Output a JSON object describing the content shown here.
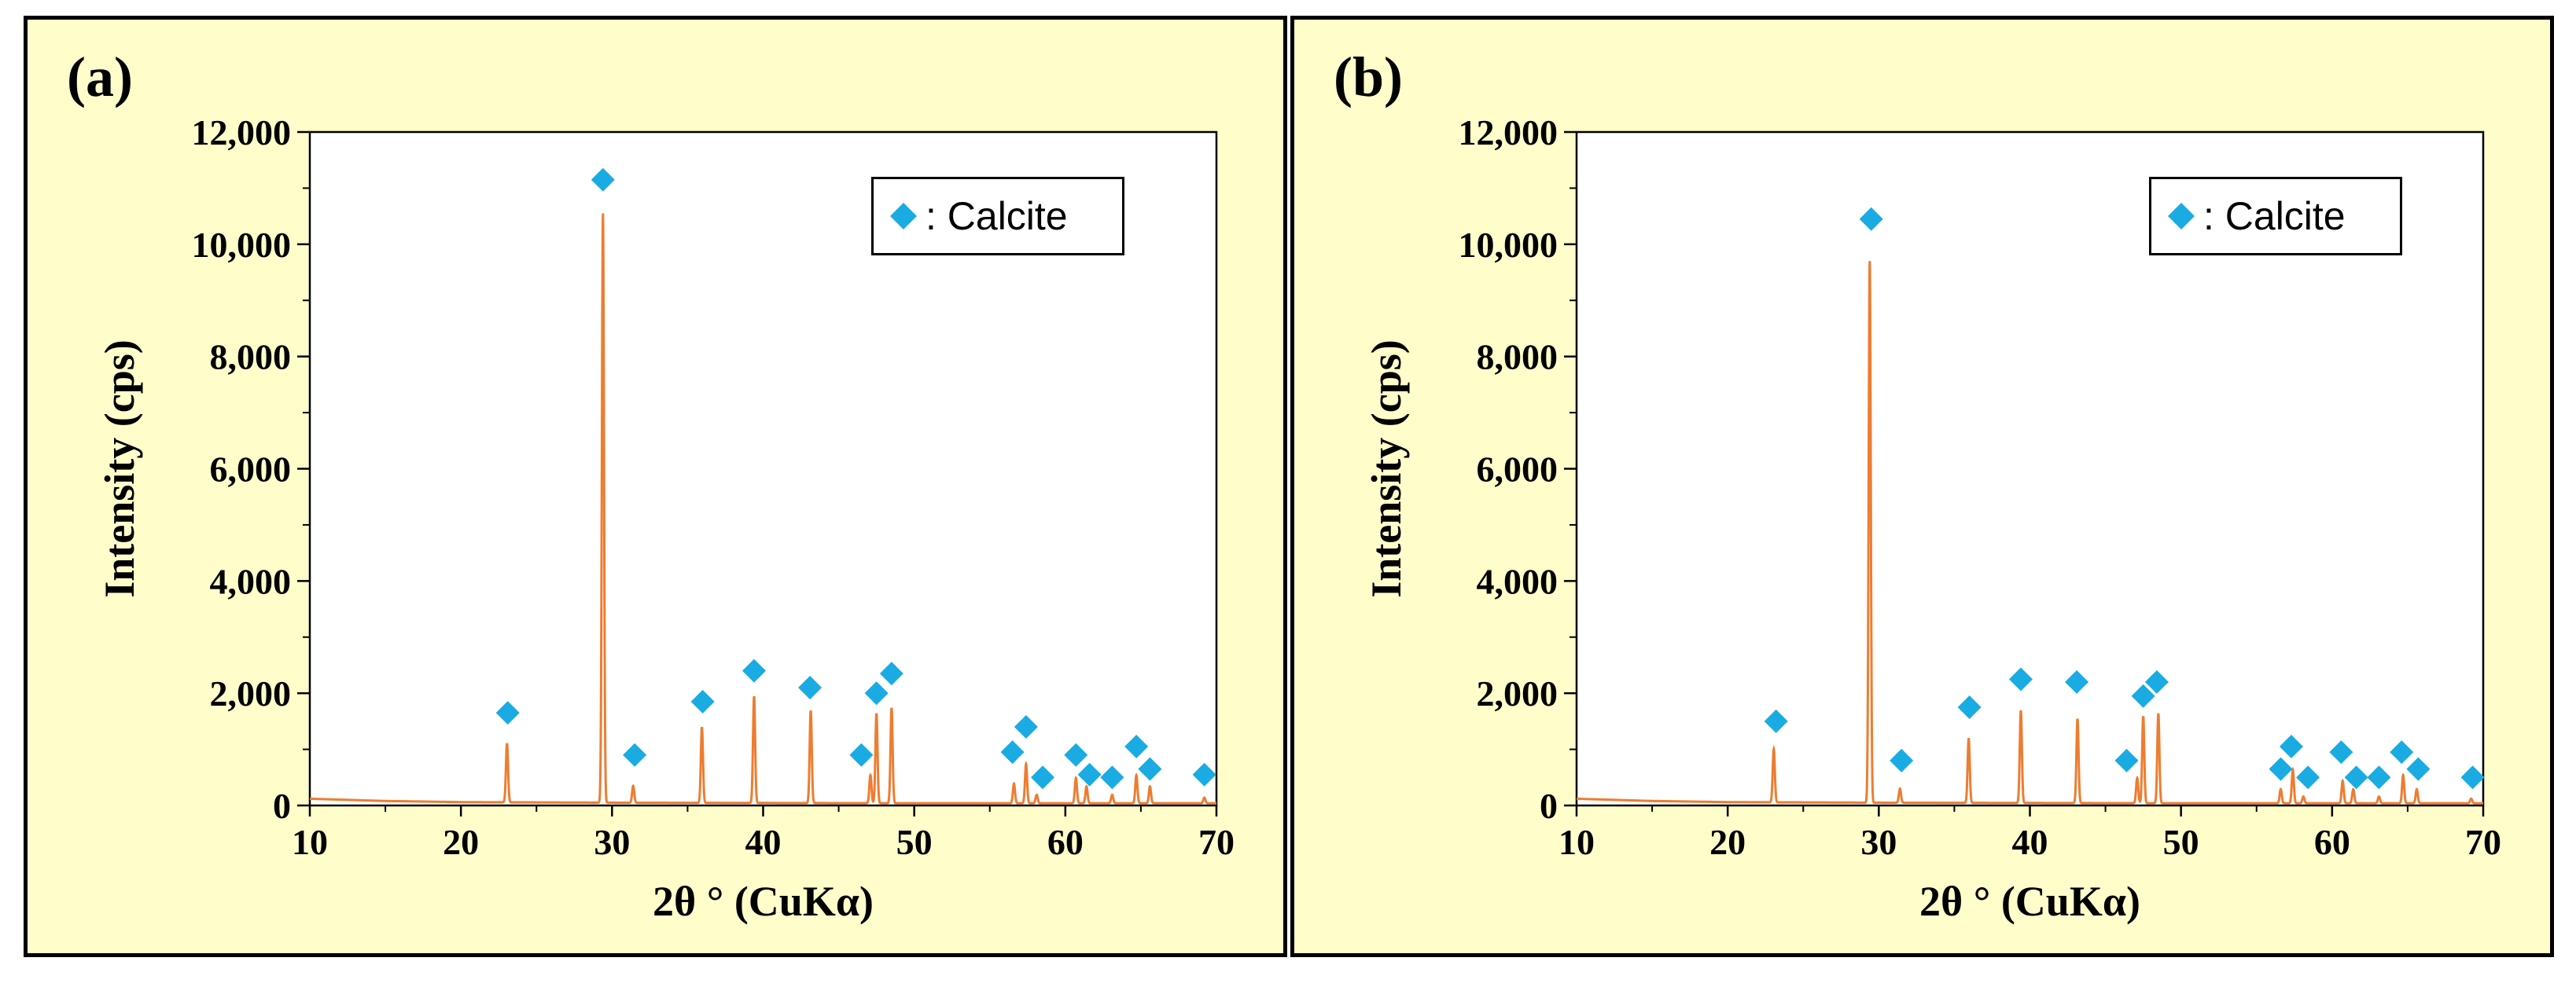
{
  "colors": {
    "panel_bg": "#fffecb",
    "line": "#ed7d31",
    "marker": "#1aabe3",
    "plot_bg": "#ffffff"
  },
  "chart_data": [
    {
      "panel_label": "(a)",
      "type": "line",
      "xlabel": "2θ ° (CuKα)",
      "ylabel": "Intensity (cps)",
      "xlim": [
        10,
        70
      ],
      "ylim": [
        0,
        12000
      ],
      "x_ticks": [
        "10",
        "20",
        "30",
        "40",
        "50",
        "60",
        "70"
      ],
      "y_ticks": [
        "0",
        "2,000",
        "4,000",
        "6,000",
        "8,000",
        "10,000",
        "12,000"
      ],
      "legend": {
        "symbol": "diamond",
        "label": ": Calcite"
      },
      "baseline": [
        [
          10,
          120
        ],
        [
          15,
          80
        ],
        [
          20,
          60
        ],
        [
          30,
          50
        ],
        [
          50,
          40
        ],
        [
          70,
          40
        ]
      ],
      "peaks": [
        {
          "x": 23.05,
          "y": 1050
        },
        {
          "x": 29.4,
          "y": 10500
        },
        {
          "x": 31.4,
          "y": 300
        },
        {
          "x": 35.95,
          "y": 1350
        },
        {
          "x": 39.4,
          "y": 1900
        },
        {
          "x": 43.15,
          "y": 1650
        },
        {
          "x": 47.1,
          "y": 500
        },
        {
          "x": 47.5,
          "y": 1600
        },
        {
          "x": 48.5,
          "y": 1700
        },
        {
          "x": 56.6,
          "y": 350
        },
        {
          "x": 57.4,
          "y": 700
        },
        {
          "x": 58.1,
          "y": 150
        },
        {
          "x": 60.7,
          "y": 450
        },
        {
          "x": 61.4,
          "y": 300
        },
        {
          "x": 63.1,
          "y": 150
        },
        {
          "x": 64.7,
          "y": 500
        },
        {
          "x": 65.6,
          "y": 300
        },
        {
          "x": 69.2,
          "y": 100
        }
      ],
      "markers": [
        {
          "x": 23.1,
          "y": 1650
        },
        {
          "x": 29.4,
          "y": 11150
        },
        {
          "x": 31.5,
          "y": 900
        },
        {
          "x": 36.0,
          "y": 1850
        },
        {
          "x": 39.4,
          "y": 2400
        },
        {
          "x": 43.1,
          "y": 2100
        },
        {
          "x": 46.5,
          "y": 900
        },
        {
          "x": 47.5,
          "y": 2000
        },
        {
          "x": 48.5,
          "y": 2350
        },
        {
          "x": 56.5,
          "y": 950
        },
        {
          "x": 57.4,
          "y": 1400
        },
        {
          "x": 58.5,
          "y": 500
        },
        {
          "x": 60.7,
          "y": 900
        },
        {
          "x": 61.6,
          "y": 550
        },
        {
          "x": 63.1,
          "y": 500
        },
        {
          "x": 64.7,
          "y": 1050
        },
        {
          "x": 65.6,
          "y": 650
        },
        {
          "x": 69.2,
          "y": 550
        }
      ]
    },
    {
      "panel_label": "(b)",
      "type": "line",
      "xlabel": "2θ ° (CuKα)",
      "ylabel": "Intensity (cps)",
      "xlim": [
        10,
        70
      ],
      "ylim": [
        0,
        12000
      ],
      "x_ticks": [
        "10",
        "20",
        "30",
        "40",
        "50",
        "60",
        "70"
      ],
      "y_ticks": [
        "0",
        "2,000",
        "4,000",
        "6,000",
        "8,000",
        "10,000",
        "12,000"
      ],
      "legend": {
        "symbol": "diamond",
        "label": ": Calcite"
      },
      "baseline": [
        [
          10,
          120
        ],
        [
          15,
          80
        ],
        [
          20,
          60
        ],
        [
          30,
          50
        ],
        [
          50,
          40
        ],
        [
          70,
          40
        ]
      ],
      "peaks": [
        {
          "x": 23.05,
          "y": 950
        },
        {
          "x": 29.4,
          "y": 9650
        },
        {
          "x": 31.4,
          "y": 250
        },
        {
          "x": 35.95,
          "y": 1150
        },
        {
          "x": 39.4,
          "y": 1650
        },
        {
          "x": 43.15,
          "y": 1500
        },
        {
          "x": 47.1,
          "y": 450
        },
        {
          "x": 47.5,
          "y": 1550
        },
        {
          "x": 48.5,
          "y": 1600
        },
        {
          "x": 56.6,
          "y": 250
        },
        {
          "x": 57.4,
          "y": 600
        },
        {
          "x": 58.1,
          "y": 120
        },
        {
          "x": 60.7,
          "y": 400
        },
        {
          "x": 61.4,
          "y": 250
        },
        {
          "x": 63.1,
          "y": 120
        },
        {
          "x": 64.7,
          "y": 500
        },
        {
          "x": 65.6,
          "y": 250
        },
        {
          "x": 69.2,
          "y": 80
        }
      ],
      "markers": [
        {
          "x": 23.2,
          "y": 1500
        },
        {
          "x": 29.5,
          "y": 10450
        },
        {
          "x": 31.5,
          "y": 800
        },
        {
          "x": 36.0,
          "y": 1750
        },
        {
          "x": 39.4,
          "y": 2250
        },
        {
          "x": 43.1,
          "y": 2200
        },
        {
          "x": 46.4,
          "y": 800
        },
        {
          "x": 47.5,
          "y": 1950
        },
        {
          "x": 48.4,
          "y": 2200
        },
        {
          "x": 56.6,
          "y": 650
        },
        {
          "x": 57.3,
          "y": 1050
        },
        {
          "x": 58.4,
          "y": 500
        },
        {
          "x": 60.6,
          "y": 950
        },
        {
          "x": 61.6,
          "y": 500
        },
        {
          "x": 63.1,
          "y": 500
        },
        {
          "x": 64.6,
          "y": 950
        },
        {
          "x": 65.7,
          "y": 650
        },
        {
          "x": 69.3,
          "y": 500
        }
      ]
    }
  ]
}
